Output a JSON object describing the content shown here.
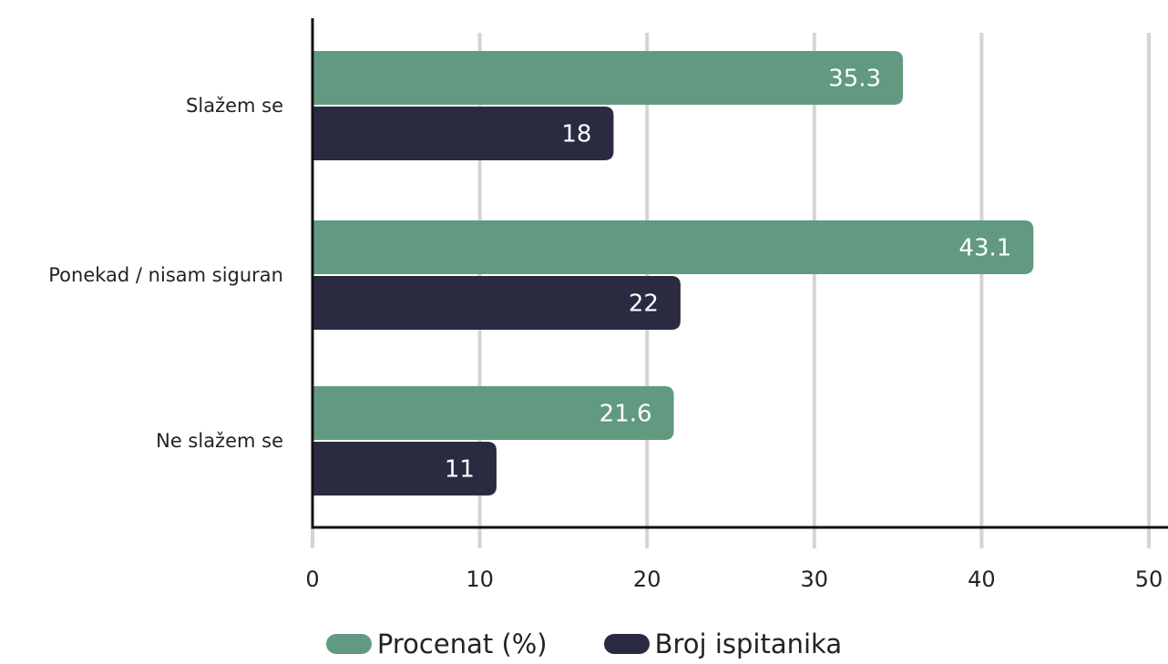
{
  "chart_data": {
    "type": "bar",
    "orientation": "horizontal",
    "categories": [
      "Slažem se",
      "Ponekad / nisam siguran",
      "Ne slažem se"
    ],
    "series": [
      {
        "name": "Procenat (%)",
        "values": [
          35.3,
          43.1,
          21.6
        ],
        "color": "#619a81"
      },
      {
        "name": "Broj ispitanika",
        "values": [
          18,
          22,
          11
        ],
        "color": "#2a2b40"
      }
    ],
    "xlim": [
      0,
      50
    ],
    "xticks": [
      0,
      10,
      20,
      30,
      40,
      50
    ],
    "grid": true,
    "legend_position": "bottom"
  }
}
